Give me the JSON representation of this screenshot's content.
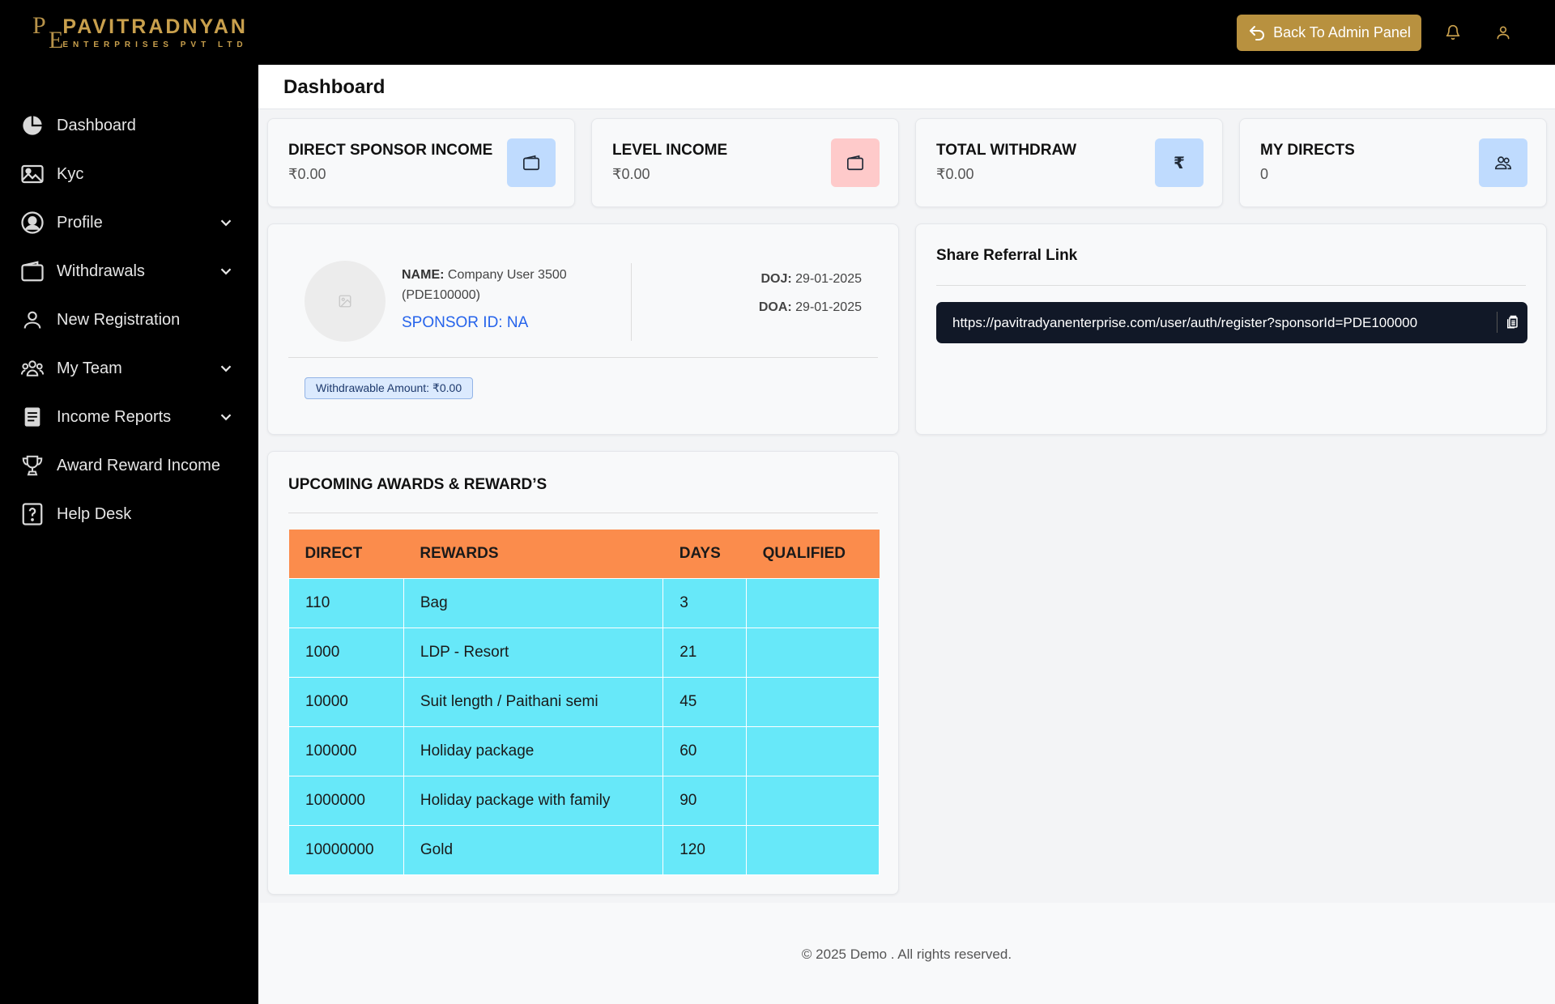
{
  "brand": {
    "logo_letters": [
      "P",
      "E"
    ],
    "title": "PAVITRADNYAN",
    "subtitle": "ENTERPRISES PVT LTD"
  },
  "topbar": {
    "admin_button": "Back To Admin Panel",
    "icons": [
      "bell-icon",
      "user-icon"
    ]
  },
  "sidebar": {
    "items": [
      {
        "label": "Dashboard",
        "icon": "pie-chart-icon",
        "expandable": false
      },
      {
        "label": "Kyc",
        "icon": "image-icon",
        "expandable": false
      },
      {
        "label": "Profile",
        "icon": "user-circle-icon",
        "expandable": true
      },
      {
        "label": "Withdrawals",
        "icon": "wallet-icon",
        "expandable": true
      },
      {
        "label": "New Registration",
        "icon": "user-icon",
        "expandable": false
      },
      {
        "label": "My Team",
        "icon": "users-icon",
        "expandable": true
      },
      {
        "label": "Income Reports",
        "icon": "document-icon",
        "expandable": true
      },
      {
        "label": "Award Reward Income",
        "icon": "trophy-icon",
        "expandable": false
      },
      {
        "label": "Help Desk",
        "icon": "question-icon",
        "expandable": false
      }
    ]
  },
  "page": {
    "title": "Dashboard"
  },
  "stats": [
    {
      "title": "DIRECT SPONSOR INCOME",
      "value": "₹0.00",
      "icon": "wallet-icon",
      "icon_bg": "#bfdbfe"
    },
    {
      "title": "LEVEL INCOME",
      "value": "₹0.00",
      "icon": "wallet-icon",
      "icon_bg": "#fecaca"
    },
    {
      "title": "TOTAL WITHDRAW",
      "value": "₹0.00",
      "icon": "rupee-icon",
      "icon_bg": "#bfdbfe"
    },
    {
      "title": "MY DIRECTS",
      "value": "0",
      "icon": "users-icon",
      "icon_bg": "#bfdbfe"
    }
  ],
  "profile": {
    "name_label": "NAME:",
    "name_value": "Company User 3500 (PDE100000)",
    "sponsor_label": "SPONSOR ID:",
    "sponsor_value": "NA",
    "doj_label": "DOJ:",
    "doj_value": "29-01-2025",
    "doa_label": "DOA:",
    "doa_value": "29-01-2025",
    "withdrawable": "Withdrawable Amount: ₹0.00"
  },
  "referral": {
    "title": "Share Referral Link",
    "link": "https://pavitradyanenterprise.com/user/auth/register?sponsorId=PDE100000"
  },
  "awards": {
    "title": "UPCOMING AWARDS & REWARD’S",
    "columns": [
      "DIRECT",
      "REWARDS",
      "DAYS",
      "QUALIFIED"
    ],
    "rows": [
      [
        "110",
        "Bag",
        "3",
        ""
      ],
      [
        "1000",
        "LDP - Resort",
        "21",
        ""
      ],
      [
        "10000",
        "Suit length / Paithani semi",
        "45",
        ""
      ],
      [
        "100000",
        "Holiday package",
        "60",
        ""
      ],
      [
        "1000000",
        "Holiday package with family",
        "90",
        ""
      ],
      [
        "10000000",
        "Gold",
        "120",
        ""
      ]
    ]
  },
  "footer": {
    "text": "© 2025 Demo . All rights reserved."
  },
  "colors": {
    "accent_gold": "#b8913f",
    "table_header": "#fb8c4c",
    "table_cell": "#67e8f9",
    "sponsor_blue": "#2563eb"
  }
}
